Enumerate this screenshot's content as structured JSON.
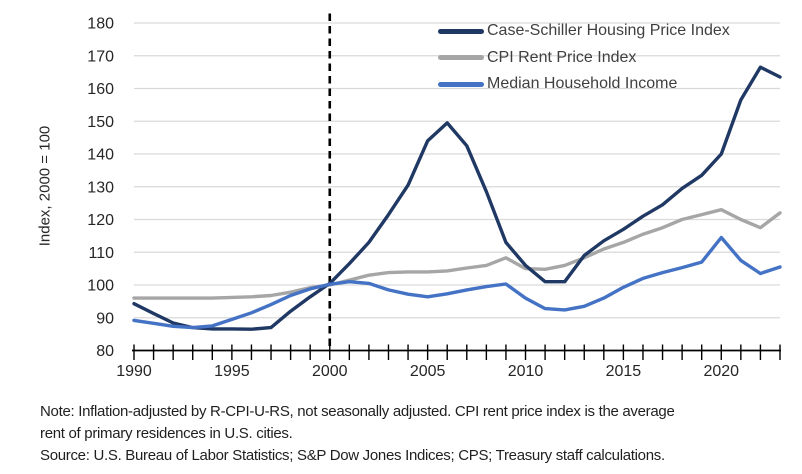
{
  "figure": {
    "y_axis_title": "Index, 2000 = 100",
    "legend": {
      "items": [
        {
          "label": "Case-Schiller Housing Price Index",
          "color": "#1f3864"
        },
        {
          "label": "CPI Rent Price Index",
          "color": "#a6a6a6"
        },
        {
          "label": "Median Household Income",
          "color": "#4472c4"
        }
      ]
    },
    "notes": {
      "lines": [
        "Note: Inflation-adjusted by R-CPI-U-RS, not seasonally adjusted. CPI rent price index is the average",
        "rent of primary residences in U.S. cities.",
        "Source: U.S. Bureau of Labor Statistics; S&P Dow Jones Indices; CPS; Treasury staff calculations."
      ]
    }
  },
  "chart_data": {
    "type": "line",
    "title": "",
    "xlabel": "",
    "ylabel": "Index, 2000 = 100",
    "xlim": [
      1990,
      2023
    ],
    "ylim": [
      80,
      180
    ],
    "y_tick_step": 10,
    "x_tick_label_years": [
      1990,
      1995,
      2000,
      2005,
      2010,
      2015,
      2020
    ],
    "x_minor_tick_every_years": 1,
    "grid": "horizontal",
    "legend_position": "top-right",
    "reference_line": {
      "x": 2000,
      "style": "dashed",
      "color": "#000000"
    },
    "colors": {
      "gridline": "#d9d9d9",
      "axis": "#000000",
      "tick_label": "#262626"
    },
    "x": [
      1990,
      1991,
      1992,
      1993,
      1994,
      1995,
      1996,
      1997,
      1998,
      1999,
      2000,
      2001,
      2002,
      2003,
      2004,
      2005,
      2006,
      2007,
      2008,
      2009,
      2010,
      2011,
      2012,
      2013,
      2014,
      2015,
      2016,
      2017,
      2018,
      2019,
      2020,
      2021,
      2022,
      2023
    ],
    "series": [
      {
        "name": "Case-Schiller Housing Price Index",
        "color": "#1f3864",
        "values": [
          94.3,
          91.3,
          88.4,
          87,
          86.6,
          86.6,
          86.5,
          87,
          92,
          96.4,
          100.5,
          106.5,
          113,
          121.5,
          130.5,
          144,
          149.5,
          142.5,
          128.5,
          113,
          106,
          101,
          101,
          109,
          113.5,
          117,
          121,
          124.5,
          129.5,
          133.5,
          140,
          156.5,
          166.5,
          163.5
        ]
      },
      {
        "name": "CPI Rent Price Index",
        "color": "#a6a6a6",
        "values": [
          96,
          96,
          96,
          96,
          96,
          96.2,
          96.4,
          96.8,
          97.8,
          99.2,
          100,
          101.5,
          103,
          103.8,
          104,
          104,
          104.3,
          105.2,
          106,
          108.3,
          105,
          104.8,
          106,
          108.3,
          111,
          113,
          115.5,
          117.5,
          120,
          121.5,
          123,
          120,
          117.5,
          122
        ]
      },
      {
        "name": "Median Household Income",
        "color": "#4472c4",
        "values": [
          89.2,
          88.3,
          87.4,
          87,
          87.5,
          89.5,
          91.5,
          94,
          96.8,
          98.8,
          100.2,
          101,
          100.5,
          98.5,
          97.2,
          96.4,
          97.3,
          98.5,
          99.5,
          100.3,
          96,
          92.8,
          92.4,
          93.5,
          96,
          99.3,
          102,
          103.8,
          105.3,
          107,
          114.5,
          107.5,
          103.5,
          105.5
        ]
      }
    ]
  }
}
